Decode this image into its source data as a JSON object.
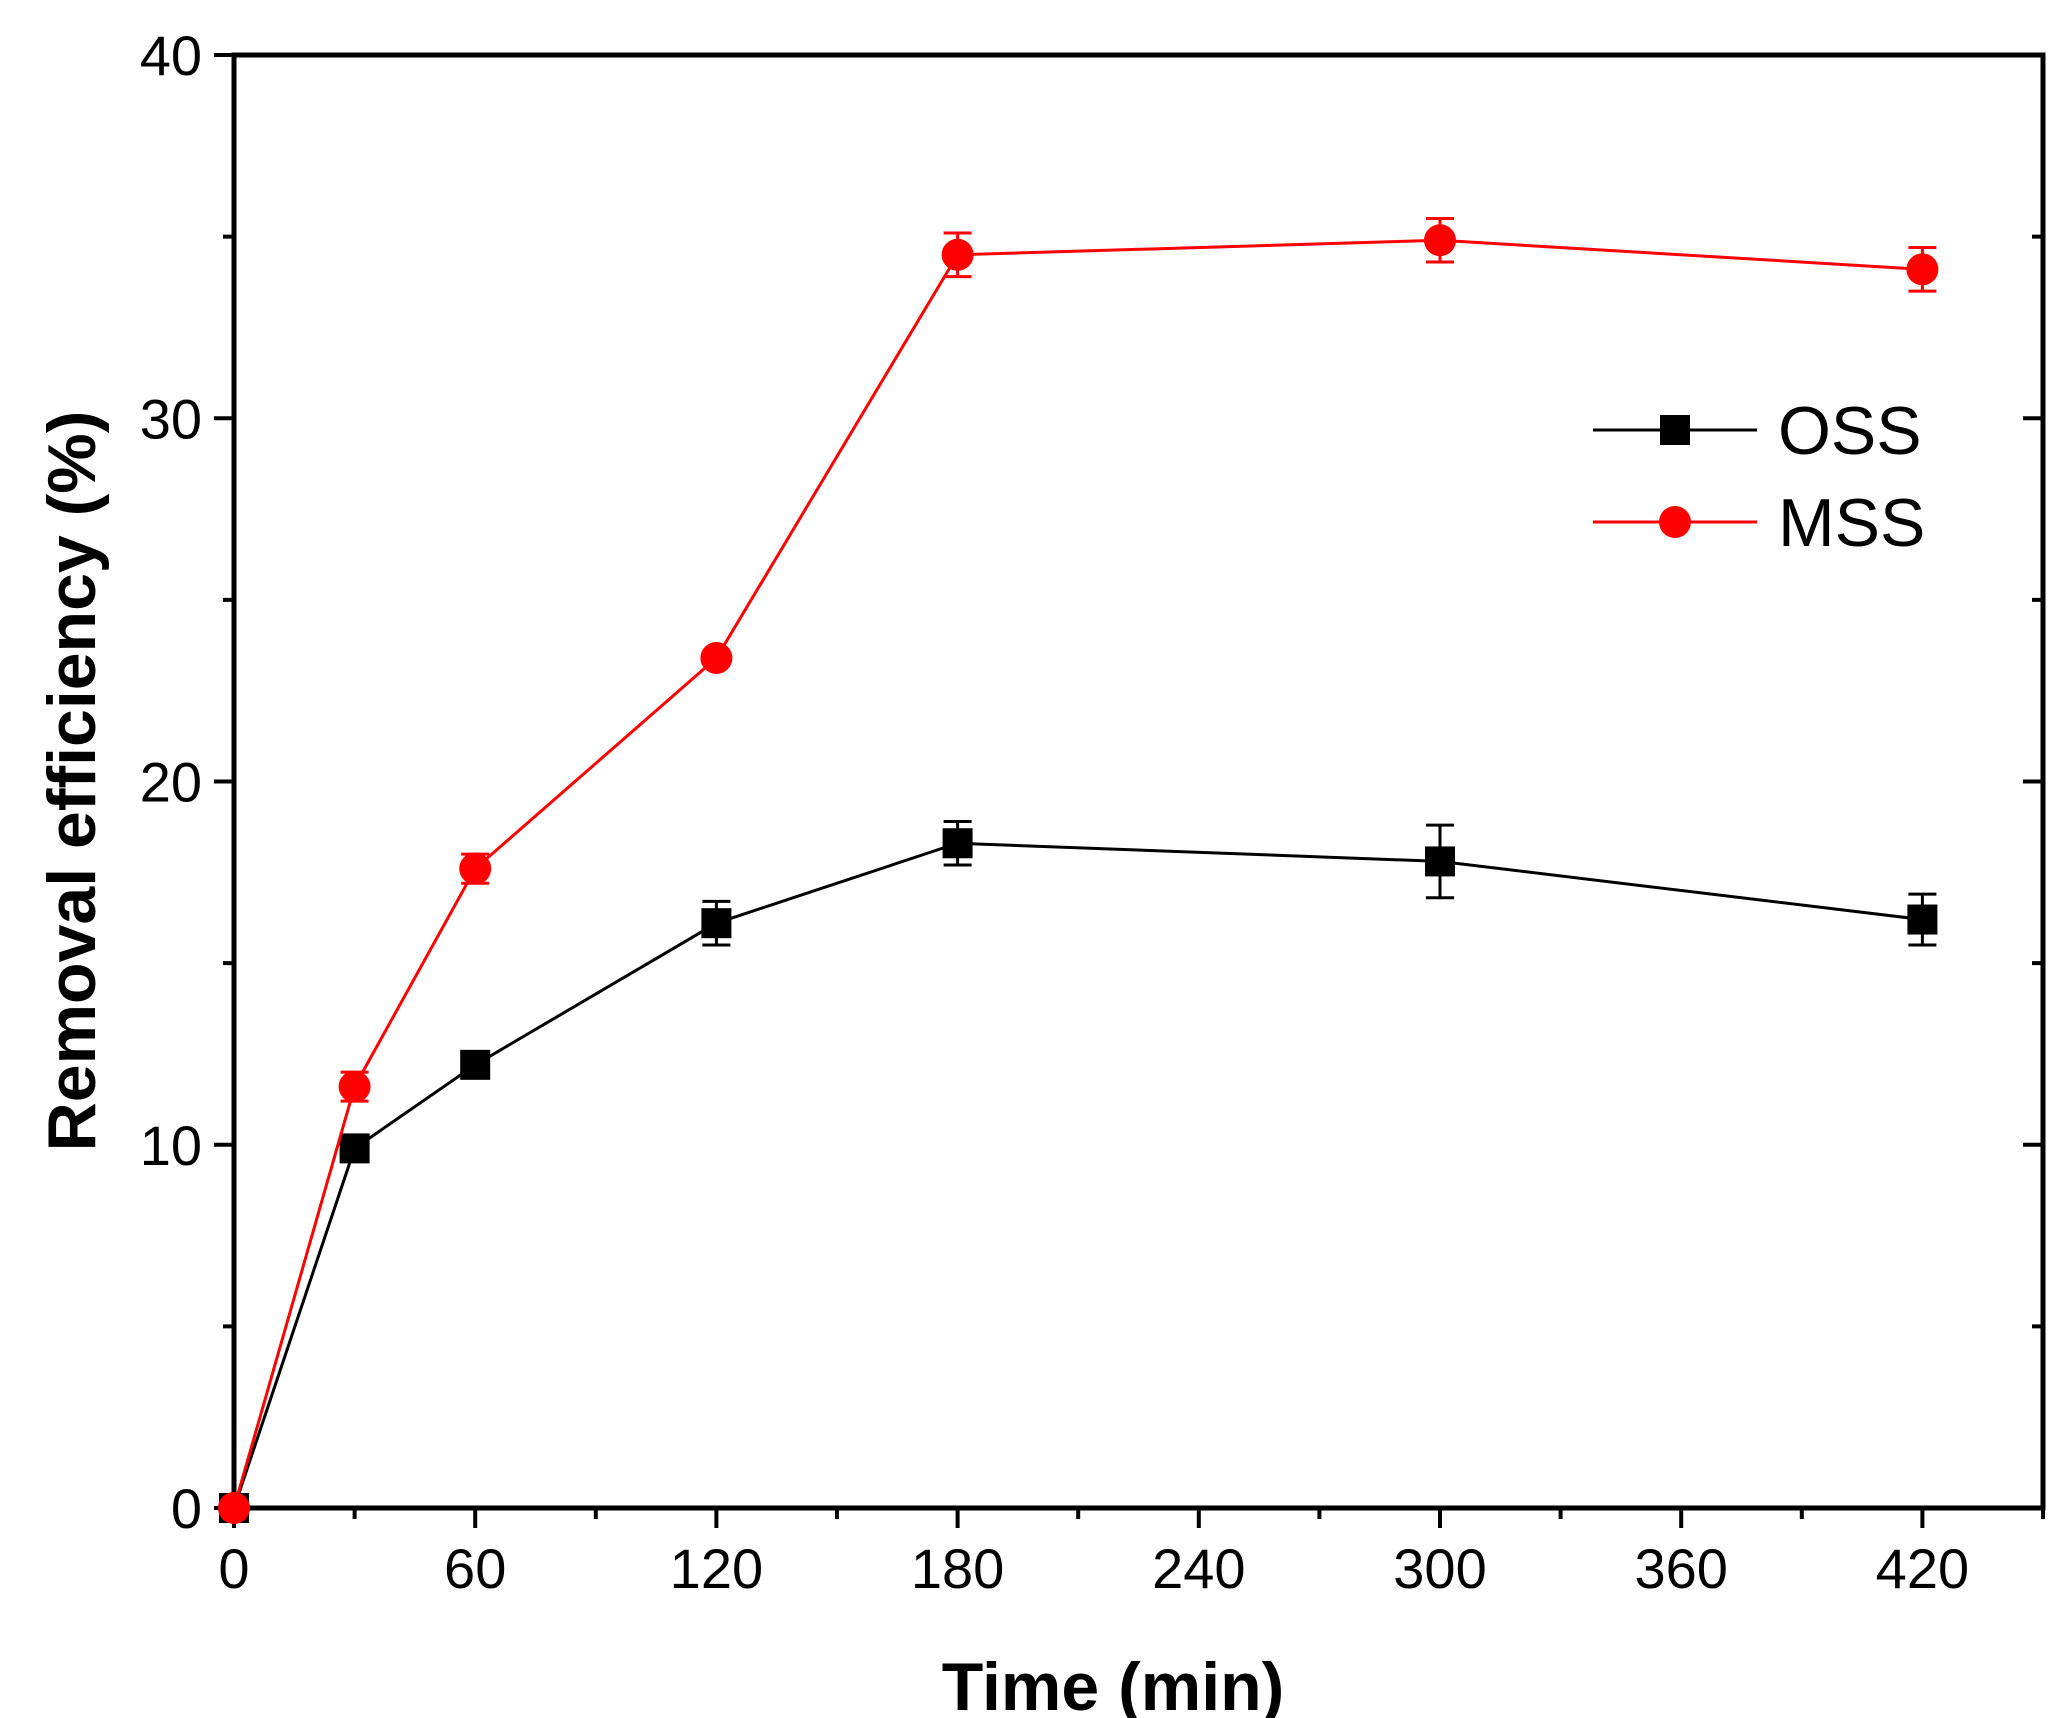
{
  "chart_data": {
    "type": "line",
    "title": "",
    "xlabel": "Time (min)",
    "ylabel": "Removal efficiency (%)",
    "xlim": [
      0,
      450
    ],
    "ylim": [
      0,
      40
    ],
    "xticks": [
      0,
      60,
      120,
      180,
      240,
      300,
      360,
      420
    ],
    "xtick_labels": [
      "0",
      "60",
      "120",
      "180",
      "240",
      "300",
      "360",
      "420"
    ],
    "xminor": [
      30,
      90,
      150,
      210,
      270,
      330,
      390,
      450
    ],
    "yticks": [
      0,
      10,
      20,
      30,
      40
    ],
    "ytick_labels": [
      "0",
      "10",
      "20",
      "30",
      "40"
    ],
    "yminor": [
      5,
      15,
      25,
      35
    ],
    "legend_position": "top-right",
    "series": [
      {
        "name": "OSS",
        "color": "#000000",
        "marker": "square",
        "x": [
          0,
          30,
          60,
          120,
          180,
          300,
          420
        ],
        "y": [
          0,
          9.9,
          12.2,
          16.1,
          18.3,
          17.8,
          16.2
        ],
        "err": [
          0,
          0,
          0,
          0.6,
          0.6,
          1.0,
          0.7
        ]
      },
      {
        "name": "MSS",
        "color": "#ff0000",
        "marker": "circle",
        "x": [
          0,
          30,
          60,
          120,
          180,
          300,
          420
        ],
        "y": [
          0,
          11.6,
          17.6,
          23.4,
          34.5,
          34.9,
          34.1
        ],
        "err": [
          0,
          0.4,
          0.4,
          0,
          0.6,
          0.6,
          0.6
        ]
      }
    ]
  }
}
